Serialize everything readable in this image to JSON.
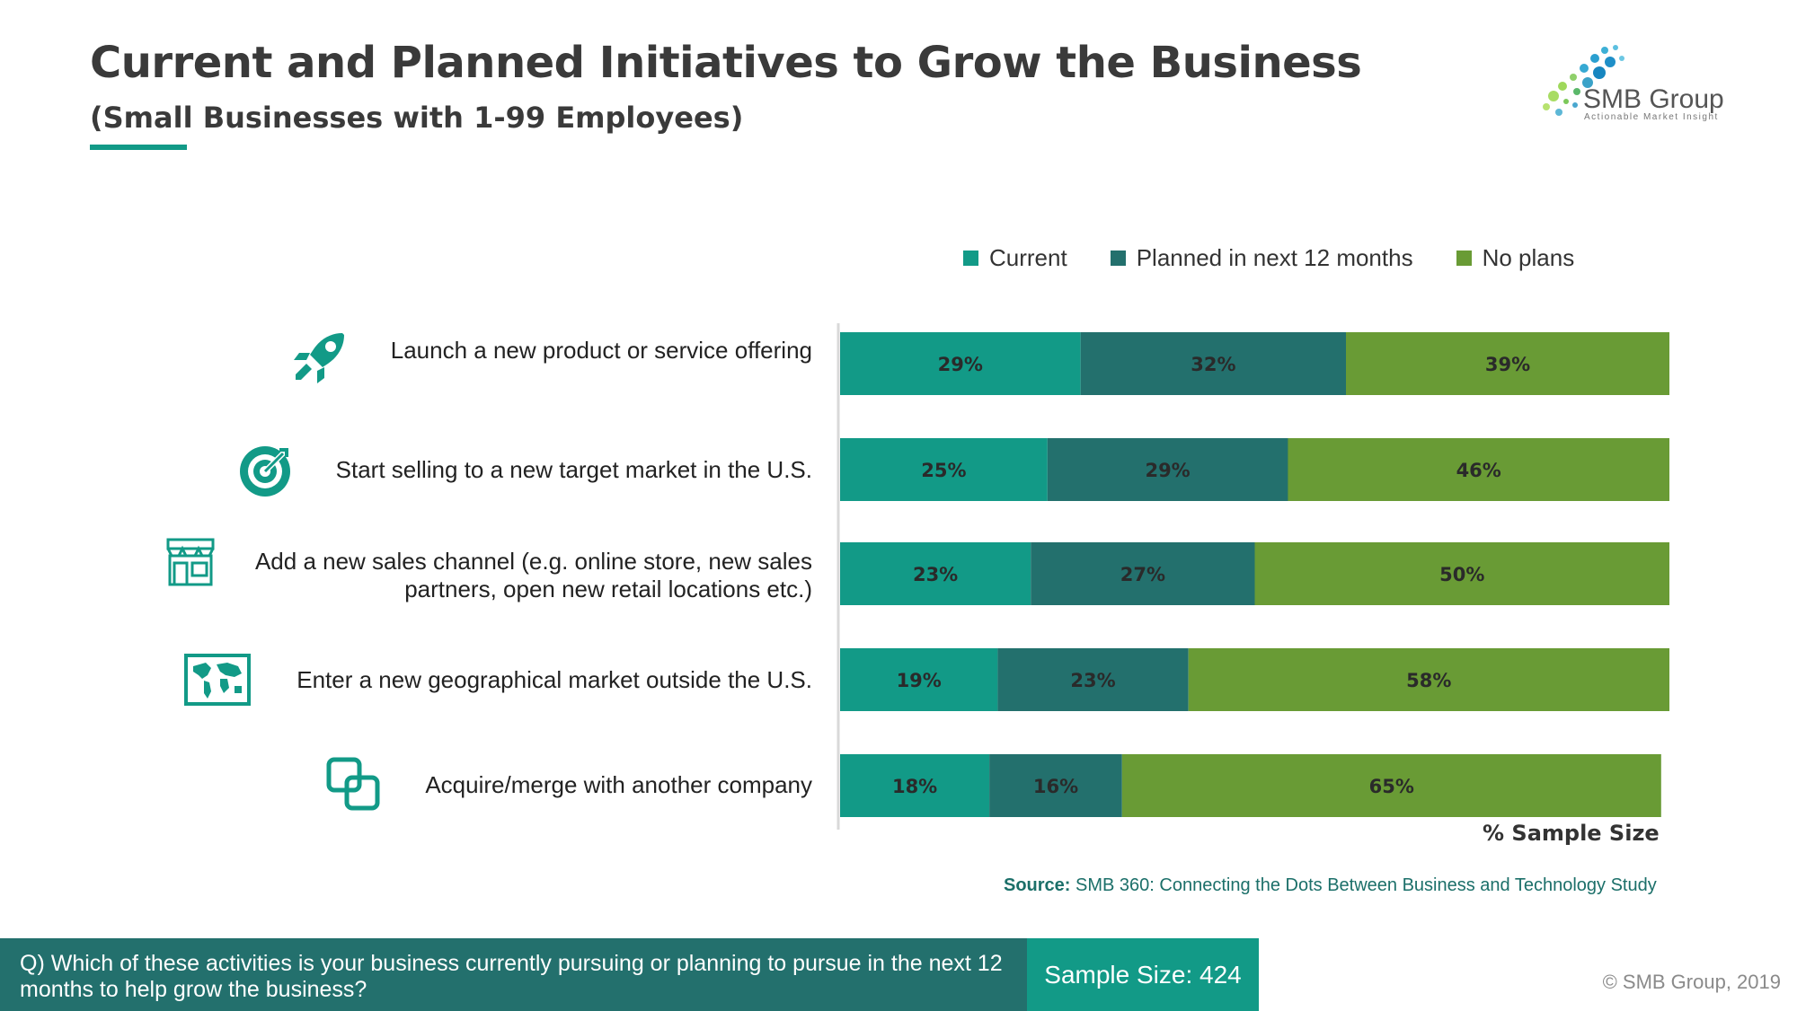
{
  "header": {
    "title": "Current and Planned Initiatives to Grow the Business",
    "subtitle": "(Small Businesses with 1-99 Employees)"
  },
  "logo": {
    "name": "SMB Group",
    "tagline": "Actionable Market Insight"
  },
  "chart_data": {
    "type": "bar",
    "orientation": "horizontal",
    "stacked": true,
    "categories": [
      "Launch a new product or service offering",
      "Start selling to a new target market in the U.S.",
      "Add a new sales channel (e.g. online store, new sales partners, open new retail locations etc.)",
      "Enter a new geographical market outside the U.S.",
      "Acquire/merge with another company"
    ],
    "category_icons": [
      "rocket-icon",
      "target-icon",
      "storefront-icon",
      "world-map-icon",
      "merge-icon"
    ],
    "series": [
      {
        "name": "Current",
        "color": "#129a87",
        "values": [
          29,
          25,
          23,
          19,
          18
        ]
      },
      {
        "name": "Planned in next 12 months",
        "color": "#23706d",
        "values": [
          32,
          29,
          27,
          23,
          16
        ]
      },
      {
        "name": "No plans",
        "color": "#699b35",
        "values": [
          39,
          46,
          50,
          58,
          65
        ]
      }
    ],
    "value_suffix": "%",
    "xlim": [
      0,
      100
    ],
    "xlabel": "% Sample Size",
    "legend_position": "top",
    "grid": false
  },
  "footer": {
    "source_label": "Source:",
    "source_text": "SMB 360: Connecting the Dots Between Business and Technology Study",
    "question": "Q) Which of these activities is your business currently pursuing or planning to pursue in the next 12 months to help grow the business?",
    "sample_size": "Sample Size: 424",
    "copyright": "© SMB Group, 2019"
  }
}
